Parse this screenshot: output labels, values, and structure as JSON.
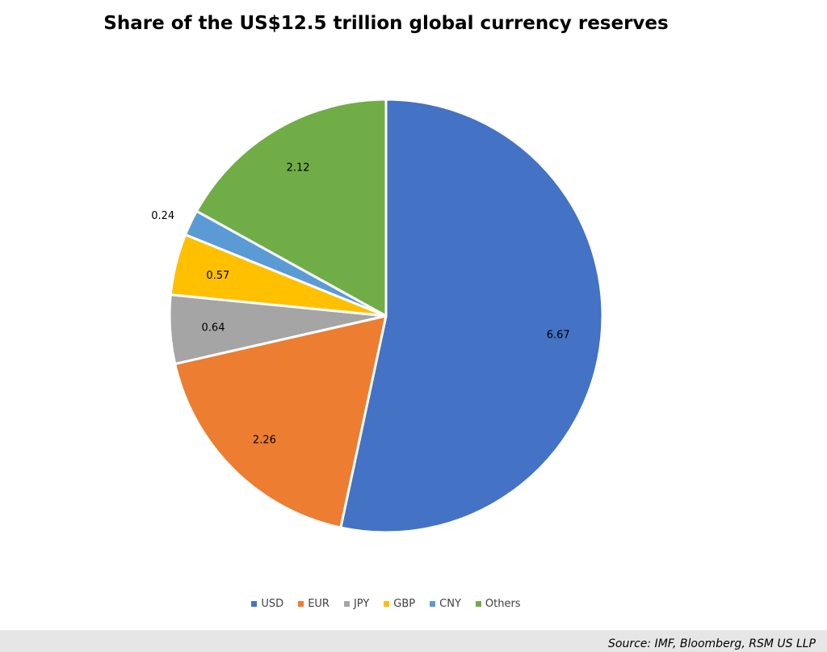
{
  "chart_data": {
    "type": "pie",
    "title": "Share of the US$12.5 trillion global currency reserves",
    "categories": [
      "USD",
      "EUR",
      "JPY",
      "GBP",
      "CNY",
      "Others"
    ],
    "values": [
      6.67,
      2.26,
      0.64,
      0.57,
      0.24,
      2.12
    ],
    "labels": [
      "6.67",
      "2.26",
      "0.64",
      "0.57",
      "0.24",
      "2.12"
    ],
    "colors": [
      "#4472C4",
      "#ED7D31",
      "#A5A5A5",
      "#FFC000",
      "#5B9BD5",
      "#70AD47"
    ],
    "legend_position": "bottom",
    "start": "top",
    "direction": "clockwise"
  },
  "source": "Source: IMF, Bloomberg, RSM US LLP"
}
